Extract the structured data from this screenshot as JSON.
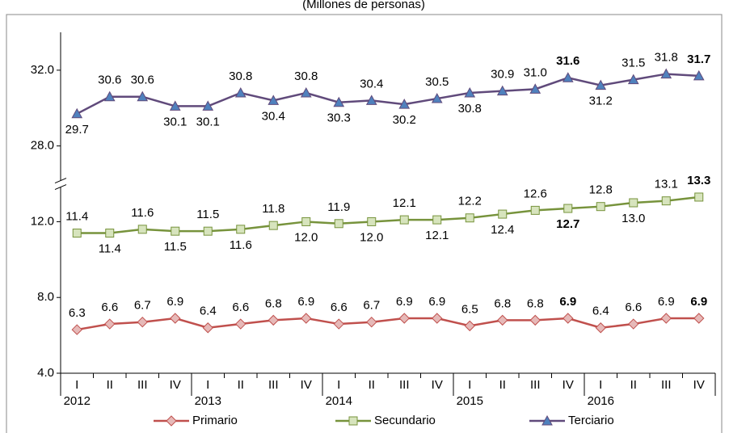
{
  "chart_data": {
    "type": "line",
    "subtitle": "(Millones de personas)",
    "categories": [
      "I",
      "II",
      "III",
      "IV",
      "I",
      "II",
      "III",
      "IV",
      "I",
      "II",
      "III",
      "IV",
      "I",
      "II",
      "III",
      "IV",
      "I",
      "II",
      "III",
      "IV"
    ],
    "years": [
      "2012",
      "2013",
      "2014",
      "2015",
      "2016"
    ],
    "ylim": [
      4,
      34
    ],
    "axis_break": [
      14,
      26
    ],
    "yticks": [
      {
        "value": 4,
        "label": "4.0"
      },
      {
        "value": 8,
        "label": "8.0"
      },
      {
        "value": 12,
        "label": "12.0"
      },
      {
        "value": 28,
        "label": "28.0"
      },
      {
        "value": 32,
        "label": "32.0"
      }
    ],
    "legend": "bottom",
    "series": [
      {
        "name": "Primario",
        "color": "#c0504d",
        "marker_fill": "#e6b9b8",
        "marker": "diamond",
        "values": [
          6.3,
          6.6,
          6.7,
          6.9,
          6.4,
          6.6,
          6.8,
          6.9,
          6.6,
          6.7,
          6.9,
          6.9,
          6.5,
          6.8,
          6.8,
          6.9,
          6.4,
          6.6,
          6.9,
          6.9
        ],
        "value_labels": [
          "6.3",
          "6.6",
          "6.7",
          "6.9",
          "6.4",
          "6.6",
          "6.8",
          "6.9",
          "6.6",
          "6.7",
          "6.9",
          "6.9",
          "6.5",
          "6.8",
          "6.8",
          "6.9",
          "6.4",
          "6.6",
          "6.9",
          "6.9"
        ]
      },
      {
        "name": "Secundario",
        "color": "#77933c",
        "marker_fill": "#d7e4bd",
        "marker": "square",
        "values": [
          11.4,
          11.4,
          11.6,
          11.5,
          11.5,
          11.6,
          11.8,
          12.0,
          11.9,
          12.0,
          12.1,
          12.1,
          12.2,
          12.4,
          12.6,
          12.7,
          12.8,
          13.0,
          13.1,
          13.3
        ],
        "value_labels": [
          "11.4",
          "11.4",
          "11.6",
          "11.5",
          "11.5",
          "11.6",
          "11.8",
          "12.0",
          "11.9",
          "12.0",
          "12.1",
          "12.1",
          "12.2",
          "12.4",
          "12.6",
          "12.7",
          "12.8",
          "13.0",
          "13.1",
          "13.3"
        ]
      },
      {
        "name": "Terciario",
        "color": "#604a7b",
        "marker_fill": "#4f81bd",
        "marker": "triangle",
        "values": [
          29.7,
          30.6,
          30.6,
          30.1,
          30.1,
          30.8,
          30.4,
          30.8,
          30.3,
          30.4,
          30.2,
          30.5,
          30.8,
          30.9,
          31.0,
          31.6,
          31.2,
          31.5,
          31.8,
          31.7
        ],
        "value_labels": [
          "29.7",
          "30.6",
          "30.6",
          "30.1",
          "30.1",
          "30.8",
          "30.4",
          "30.8",
          "30.3",
          "30.4",
          "30.2",
          "30.5",
          "30.8",
          "30.9",
          "31.0",
          "31.6",
          "31.2",
          "31.5",
          "31.8",
          "31.7"
        ]
      }
    ]
  }
}
